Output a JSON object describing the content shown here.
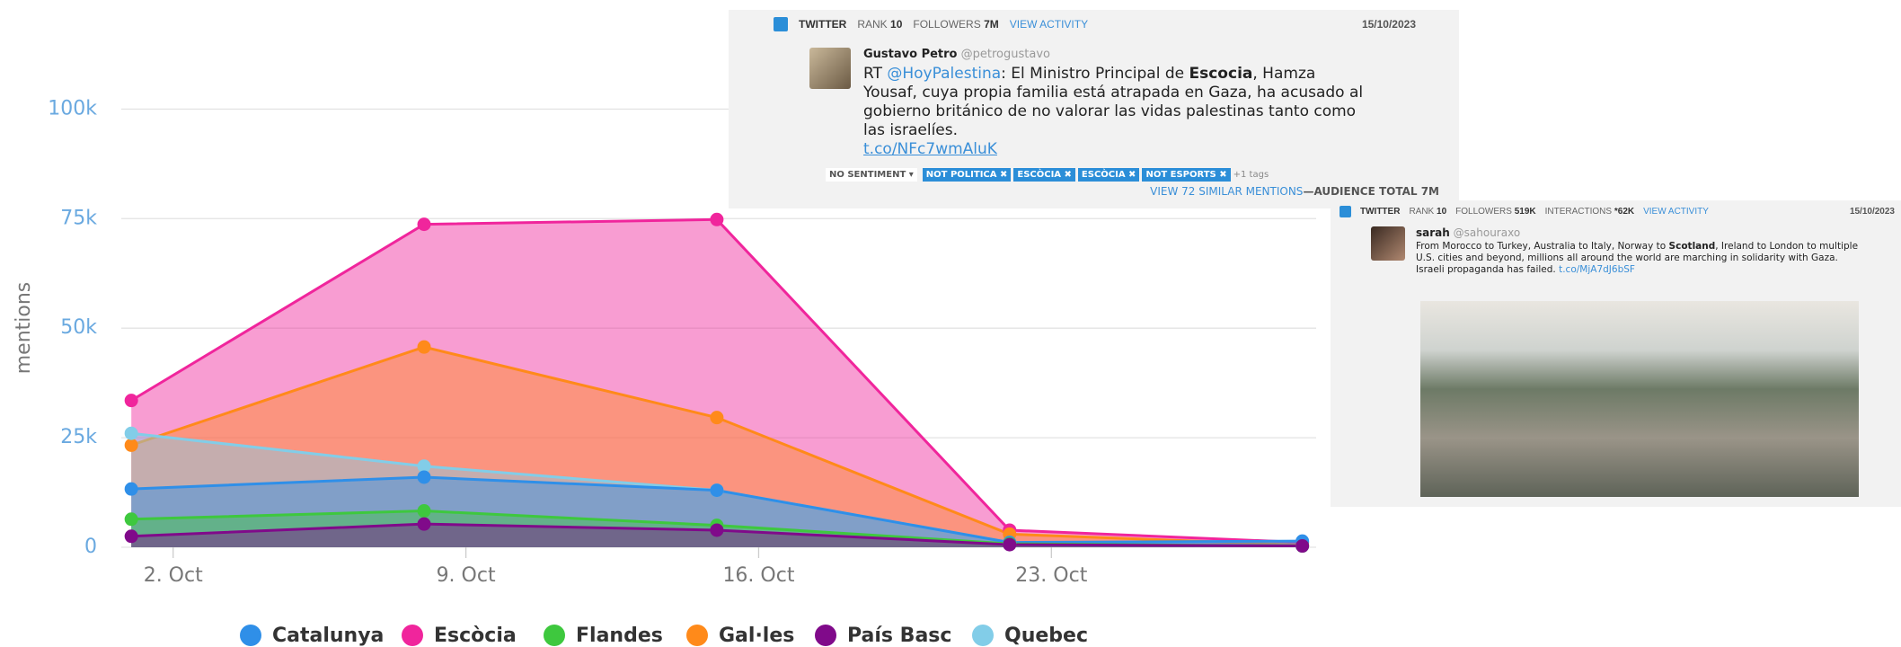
{
  "chart_data": {
    "type": "area",
    "y_label": "mentions",
    "x": [
      1,
      8,
      15,
      22,
      29
    ],
    "xlim": [
      0.76,
      29.33
    ],
    "xticks": [
      {
        "value": 2,
        "label": "2. Oct"
      },
      {
        "value": 9,
        "label": "9. Oct"
      },
      {
        "value": 16,
        "label": "16. Oct"
      },
      {
        "value": 23,
        "label": "23. Oct"
      }
    ],
    "ylim": [
      0,
      105000
    ],
    "yticks": [
      0,
      {
        "value": 25000,
        "label": "25k"
      },
      {
        "value": 50000,
        "label": "50k"
      },
      {
        "value": 75000,
        "label": "75k"
      },
      {
        "value": 100000,
        "label": "100k"
      }
    ],
    "grid": true,
    "legend": "bottom",
    "series": [
      {
        "name": "Catalunya",
        "color": "#2f8fe8",
        "values": [
          13300,
          16000,
          13000,
          1100,
          1400
        ]
      },
      {
        "name": "Escòcia",
        "color": "#f0259c",
        "values": [
          33500,
          73700,
          74800,
          3900,
          1100
        ]
      },
      {
        "name": "Flandes",
        "color": "#3ec83e",
        "values": [
          6400,
          8300,
          5000,
          800,
          300
        ]
      },
      {
        "name": "Gal·les",
        "color": "#ff8a1a",
        "values": [
          23300,
          45700,
          29600,
          3000,
          500
        ]
      },
      {
        "name": "País Basc",
        "color": "#800a8a",
        "values": [
          2500,
          5300,
          3900,
          600,
          300
        ]
      },
      {
        "name": "Quebec",
        "color": "#82cde8",
        "values": [
          26000,
          18500,
          13000,
          1100,
          300
        ]
      }
    ]
  },
  "cards": [
    {
      "network": "TWITTER",
      "rank": {
        "label": "RANK",
        "value": "10"
      },
      "followers": {
        "label": "FOLLOWERS",
        "value": "7M"
      },
      "activity": "VIEW ACTIVITY",
      "date": "15/10/2023",
      "author": "Gustavo Petro",
      "handle": "@petrogustavo",
      "text": [
        "RT ",
        "@HoyPalestina",
        ": El Ministro Principal de ",
        "Escocia",
        ", Hamza Yousaf, cuya propia familia está atrapada en Gaza, ha acusado al gobierno británico de no valorar las vidas palestinas tanto como las israelíes."
      ],
      "link": "t.co/NFc7wmAluK",
      "sentiment": "NO SENTIMENT ▾",
      "tags": [
        "NOT POLITICA ✖",
        "ESCÒCIA ✖",
        "ESCÒCIA ✖",
        "NOT ESPORTS ✖"
      ],
      "more_tags": "+1 tags",
      "similar": "VIEW 72 SIMILAR MENTIONS",
      "audience": "—AUDIENCE TOTAL 7M"
    },
    {
      "network": "TWITTER",
      "rank": {
        "label": "RANK",
        "value": "10"
      },
      "followers": {
        "label": "FOLLOWERS",
        "value": "519K"
      },
      "interactions": {
        "label": "INTERACTIONS",
        "value": "*62K"
      },
      "activity": "VIEW ACTIVITY",
      "date": "15/10/2023",
      "author": "sarah",
      "handle": "@sahouraxo",
      "text": [
        "From Morocco to Turkey, Australia to Italy, Norway to ",
        "Scotland",
        ", Ireland to London to multiple U.S. cities and beyond, millions all around the world are marching in solidarity with Gaza. Israeli propaganda has failed. "
      ],
      "link": "t.co/MjA7dJ6bSF"
    }
  ]
}
